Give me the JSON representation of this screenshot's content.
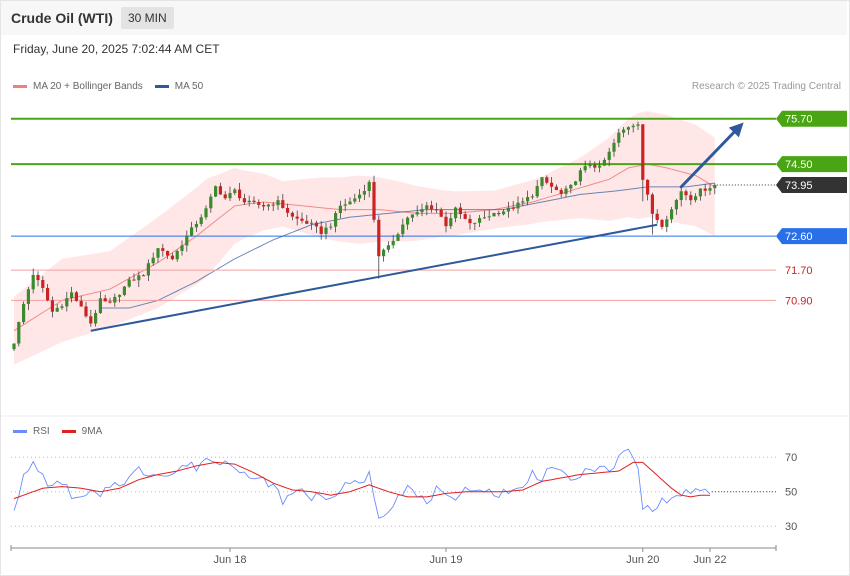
{
  "header": {
    "instrument": "Crude Oil (WTI)",
    "timeframe": "30 MIN",
    "timestamp": "Friday, June 20, 2025 7:02:44 AM CET",
    "credit": "Research © 2025 Trading Central"
  },
  "colors": {
    "ma20": "#f08080",
    "bands_fill": "#ffe3e3",
    "ma50": "#2e5a9c",
    "candle_up": "#3c8a2e",
    "candle_down": "#cc2222",
    "resistance": "#4aa514",
    "pivot": "#2970e8",
    "support": "#f2a0a0",
    "last_price": "#333333",
    "rsi": "#6b8cff",
    "rsi_ma": "#e02020",
    "trendline": "#2e5a9c"
  },
  "chart_data": [
    {
      "type": "candlestick",
      "title": "Crude Oil (WTI)",
      "legend": [
        {
          "name": "MA 20 + Bollinger Bands"
        },
        {
          "name": "MA 50"
        }
      ],
      "ylim": [
        67.9,
        76.3
      ],
      "levels": [
        {
          "value": 75.7,
          "label": "75.70",
          "kind": "resistance"
        },
        {
          "value": 74.5,
          "label": "74.50",
          "kind": "resistance"
        },
        {
          "value": 72.6,
          "label": "72.60",
          "kind": "pivot"
        },
        {
          "value": 71.7,
          "label": "71.70",
          "kind": "support"
        },
        {
          "value": 70.9,
          "label": "70.90",
          "kind": "support"
        }
      ],
      "last_price": {
        "value": 73.95,
        "label": "73.95"
      },
      "close_anchors": [
        [
          0,
          69.8
        ],
        [
          2,
          70.8
        ],
        [
          4,
          71.6
        ],
        [
          6,
          71.2
        ],
        [
          8,
          70.6
        ],
        [
          10,
          70.8
        ],
        [
          12,
          71.1
        ],
        [
          14,
          70.7
        ],
        [
          16,
          70.3
        ],
        [
          18,
          70.9
        ],
        [
          20,
          70.8
        ],
        [
          22,
          71.1
        ],
        [
          24,
          71.4
        ],
        [
          27,
          71.6
        ],
        [
          30,
          72.3
        ],
        [
          33,
          72.0
        ],
        [
          36,
          72.6
        ],
        [
          40,
          73.3
        ],
        [
          42,
          73.9
        ],
        [
          44,
          73.6
        ],
        [
          46,
          73.8
        ],
        [
          48,
          73.5
        ],
        [
          52,
          73.4
        ],
        [
          55,
          73.5
        ],
        [
          58,
          73.1
        ],
        [
          62,
          72.9
        ],
        [
          64,
          72.7
        ],
        [
          66,
          72.9
        ],
        [
          68,
          73.4
        ],
        [
          70,
          73.5
        ],
        [
          72,
          73.7
        ],
        [
          74,
          74.0
        ],
        [
          76,
          72.1
        ],
        [
          78,
          72.3
        ],
        [
          80,
          72.7
        ],
        [
          82,
          73.1
        ],
        [
          84,
          73.2
        ],
        [
          86,
          73.4
        ],
        [
          88,
          73.3
        ],
        [
          90,
          72.9
        ],
        [
          92,
          73.3
        ],
        [
          95,
          72.9
        ],
        [
          98,
          73.1
        ],
        [
          100,
          73.2
        ],
        [
          103,
          73.3
        ],
        [
          106,
          73.5
        ],
        [
          108,
          73.7
        ],
        [
          110,
          74.1
        ],
        [
          112,
          73.9
        ],
        [
          114,
          73.7
        ],
        [
          116,
          73.9
        ],
        [
          118,
          74.3
        ],
        [
          120,
          74.5
        ],
        [
          122,
          74.4
        ],
        [
          124,
          74.8
        ],
        [
          126,
          75.3
        ],
        [
          128,
          75.5
        ],
        [
          130,
          75.6
        ],
        [
          131,
          74.1
        ],
        [
          133,
          73.2
        ],
        [
          135,
          72.9
        ],
        [
          137,
          73.3
        ],
        [
          139,
          73.8
        ],
        [
          141,
          73.6
        ],
        [
          143,
          73.8
        ],
        [
          145,
          73.9
        ],
        [
          146,
          73.95
        ]
      ],
      "ma20_anchors": [
        [
          0,
          70.1
        ],
        [
          10,
          70.9
        ],
        [
          20,
          71.2
        ],
        [
          30,
          71.9
        ],
        [
          38,
          72.6
        ],
        [
          46,
          73.4
        ],
        [
          52,
          73.5
        ],
        [
          60,
          73.4
        ],
        [
          68,
          73.3
        ],
        [
          76,
          73.3
        ],
        [
          84,
          73.2
        ],
        [
          92,
          73.2
        ],
        [
          100,
          73.3
        ],
        [
          108,
          73.5
        ],
        [
          116,
          73.8
        ],
        [
          124,
          74.1
        ],
        [
          128,
          74.4
        ],
        [
          132,
          74.5
        ],
        [
          136,
          74.4
        ],
        [
          142,
          74.2
        ],
        [
          146,
          73.9
        ]
      ],
      "band_width_anchors": [
        [
          0,
          0.9
        ],
        [
          10,
          1.1
        ],
        [
          20,
          1.0
        ],
        [
          30,
          1.2
        ],
        [
          40,
          1.3
        ],
        [
          48,
          0.9
        ],
        [
          56,
          0.6
        ],
        [
          64,
          0.8
        ],
        [
          72,
          0.9
        ],
        [
          80,
          0.8
        ],
        [
          90,
          0.6
        ],
        [
          100,
          0.5
        ],
        [
          110,
          0.6
        ],
        [
          118,
          0.8
        ],
        [
          126,
          1.2
        ],
        [
          130,
          1.4
        ],
        [
          136,
          1.4
        ],
        [
          146,
          1.3
        ]
      ],
      "ma50_anchors": [
        [
          18,
          70.7
        ],
        [
          24,
          70.7
        ],
        [
          30,
          70.9
        ],
        [
          38,
          71.4
        ],
        [
          46,
          72.0
        ],
        [
          54,
          72.5
        ],
        [
          62,
          72.9
        ],
        [
          70,
          73.1
        ],
        [
          78,
          73.2
        ],
        [
          86,
          73.3
        ],
        [
          94,
          73.3
        ],
        [
          102,
          73.3
        ],
        [
          110,
          73.5
        ],
        [
          118,
          73.7
        ],
        [
          126,
          73.8
        ],
        [
          132,
          73.9
        ],
        [
          140,
          73.9
        ],
        [
          146,
          74.0
        ]
      ],
      "trendlines": [
        {
          "from": [
            16,
            70.1
          ],
          "to": [
            134,
            72.9
          ],
          "kind": "support"
        },
        {
          "from": [
            139,
            73.9
          ],
          "to": [
            152,
            75.6
          ],
          "kind": "arrow"
        }
      ],
      "candle_count": 147
    },
    {
      "type": "line",
      "legend": [
        {
          "name": "RSI"
        },
        {
          "name": "9MA"
        }
      ],
      "ylim": [
        22,
        80
      ],
      "yticks": [
        70,
        50,
        30
      ],
      "xticks": [
        "Jun 18",
        "Jun 19",
        "Jun 20",
        "Jun 22"
      ],
      "rsi_anchors": [
        [
          0,
          41
        ],
        [
          2,
          58
        ],
        [
          4,
          66
        ],
        [
          6,
          59
        ],
        [
          8,
          52
        ],
        [
          10,
          56
        ],
        [
          12,
          48
        ],
        [
          14,
          45
        ],
        [
          16,
          50
        ],
        [
          18,
          46
        ],
        [
          20,
          54
        ],
        [
          22,
          55
        ],
        [
          24,
          58
        ],
        [
          26,
          63
        ],
        [
          28,
          60
        ],
        [
          30,
          62
        ],
        [
          32,
          59
        ],
        [
          34,
          62
        ],
        [
          36,
          66
        ],
        [
          38,
          64
        ],
        [
          40,
          70
        ],
        [
          42,
          66
        ],
        [
          44,
          69
        ],
        [
          46,
          66
        ],
        [
          48,
          61
        ],
        [
          50,
          56
        ],
        [
          52,
          57
        ],
        [
          54,
          53
        ],
        [
          56,
          45
        ],
        [
          58,
          48
        ],
        [
          60,
          52
        ],
        [
          62,
          46
        ],
        [
          64,
          50
        ],
        [
          66,
          44
        ],
        [
          68,
          52
        ],
        [
          70,
          54
        ],
        [
          72,
          55
        ],
        [
          74,
          60
        ],
        [
          76,
          36
        ],
        [
          78,
          40
        ],
        [
          80,
          48
        ],
        [
          82,
          53
        ],
        [
          84,
          47
        ],
        [
          86,
          44
        ],
        [
          88,
          51
        ],
        [
          90,
          46
        ],
        [
          92,
          43
        ],
        [
          94,
          55
        ],
        [
          96,
          50
        ],
        [
          98,
          52
        ],
        [
          100,
          47
        ],
        [
          102,
          51
        ],
        [
          104,
          50
        ],
        [
          106,
          52
        ],
        [
          108,
          61
        ],
        [
          110,
          58
        ],
        [
          112,
          66
        ],
        [
          114,
          60
        ],
        [
          116,
          56
        ],
        [
          118,
          60
        ],
        [
          120,
          62
        ],
        [
          122,
          66
        ],
        [
          124,
          60
        ],
        [
          126,
          70
        ],
        [
          128,
          74
        ],
        [
          130,
          64
        ],
        [
          131,
          40
        ],
        [
          133,
          41
        ],
        [
          135,
          44
        ],
        [
          137,
          46
        ],
        [
          139,
          48
        ],
        [
          141,
          51
        ],
        [
          143,
          49
        ],
        [
          145,
          50
        ]
      ],
      "rsi_ma_anchors": [
        [
          0,
          46
        ],
        [
          6,
          52
        ],
        [
          10,
          53
        ],
        [
          14,
          52
        ],
        [
          18,
          50
        ],
        [
          22,
          52
        ],
        [
          26,
          57
        ],
        [
          30,
          60
        ],
        [
          34,
          62
        ],
        [
          38,
          65
        ],
        [
          42,
          67
        ],
        [
          46,
          66
        ],
        [
          50,
          61
        ],
        [
          54,
          55
        ],
        [
          58,
          51
        ],
        [
          62,
          50
        ],
        [
          66,
          48
        ],
        [
          70,
          50
        ],
        [
          74,
          54
        ],
        [
          78,
          50
        ],
        [
          82,
          47
        ],
        [
          86,
          47
        ],
        [
          90,
          49
        ],
        [
          94,
          50
        ],
        [
          98,
          50
        ],
        [
          102,
          50
        ],
        [
          106,
          51
        ],
        [
          110,
          56
        ],
        [
          114,
          58
        ],
        [
          118,
          60
        ],
        [
          122,
          61
        ],
        [
          126,
          62
        ],
        [
          129,
          67
        ],
        [
          131,
          67
        ],
        [
          133,
          62
        ],
        [
          135,
          57
        ],
        [
          137,
          52
        ],
        [
          139,
          48
        ],
        [
          141,
          47
        ],
        [
          143,
          48
        ],
        [
          145,
          48
        ]
      ]
    }
  ]
}
